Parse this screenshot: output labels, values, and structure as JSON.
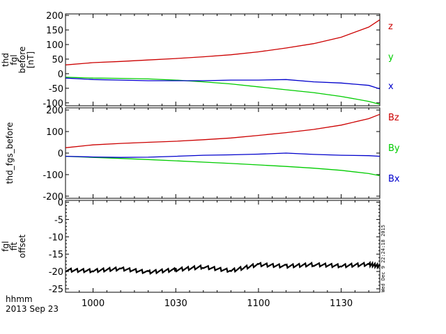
{
  "chart_data": [
    {
      "type": "line",
      "ylabel_lines": [
        "thd",
        "fgl",
        "before",
        "[nT]"
      ],
      "ylim": [
        -110,
        205
      ],
      "yticks": [
        200,
        150,
        100,
        50,
        0,
        -50,
        -100
      ],
      "x": [
        "09:50",
        "10:00",
        "10:10",
        "10:20",
        "10:30",
        "10:40",
        "10:50",
        "11:00",
        "11:10",
        "11:20",
        "11:30",
        "11:40",
        "11:44"
      ],
      "series": [
        {
          "name": "z",
          "color": "#cc0000",
          "values": [
            30,
            38,
            42,
            47,
            52,
            58,
            65,
            75,
            88,
            103,
            125,
            160,
            185
          ]
        },
        {
          "name": "y",
          "color": "#00cc00",
          "values": [
            -12,
            -15,
            -16,
            -18,
            -22,
            -28,
            -35,
            -45,
            -55,
            -65,
            -78,
            -95,
            -105
          ]
        },
        {
          "name": "x",
          "color": "#0000cc",
          "values": [
            -15,
            -20,
            -22,
            -24,
            -24,
            -24,
            -22,
            -22,
            -20,
            -28,
            -32,
            -40,
            -52
          ]
        }
      ]
    },
    {
      "type": "line",
      "ylabel": "thd_fgs_before",
      "ylim": [
        -210,
        210
      ],
      "yticks": [
        200,
        100,
        0,
        -100,
        -200
      ],
      "x": [
        "09:50",
        "10:00",
        "10:10",
        "10:20",
        "10:30",
        "10:40",
        "10:50",
        "11:00",
        "11:10",
        "11:20",
        "11:30",
        "11:40",
        "11:44"
      ],
      "series": [
        {
          "name": "Bz",
          "color": "#cc0000",
          "values": [
            25,
            38,
            45,
            50,
            55,
            62,
            70,
            82,
            95,
            110,
            130,
            160,
            180
          ]
        },
        {
          "name": "By",
          "color": "#00cc00",
          "values": [
            -15,
            -20,
            -25,
            -30,
            -36,
            -42,
            -48,
            -55,
            -62,
            -70,
            -80,
            -95,
            -105
          ]
        },
        {
          "name": "Bx",
          "color": "#0000cc",
          "values": [
            -15,
            -18,
            -20,
            -19,
            -15,
            -10,
            -8,
            -5,
            0,
            -6,
            -10,
            -12,
            -15
          ]
        }
      ]
    },
    {
      "type": "line",
      "ylabel_lines": [
        "fgl",
        "fit",
        "offset"
      ],
      "ylim": [
        -26,
        0.5
      ],
      "yticks": [
        0,
        -5,
        -10,
        -15,
        -20,
        -25
      ],
      "x": [
        "09:50",
        "10:00",
        "10:10",
        "10:20",
        "10:30",
        "10:40",
        "10:50",
        "11:00",
        "11:10",
        "11:20",
        "11:30",
        "11:40",
        "11:44"
      ],
      "series": [
        {
          "name": "",
          "color": "#000000",
          "values": [
            -19.6,
            -19.8,
            -19.2,
            -20.2,
            -19.5,
            -18.7,
            -19.8,
            -18.0,
            -18.5,
            -18.0,
            -18.4,
            -17.9,
            -18.5
          ]
        }
      ]
    }
  ],
  "xaxis": {
    "tick_labels": [
      "1000",
      "1030",
      "1100",
      "1130"
    ],
    "label_line1": "hhmm",
    "label_line2": "2013 Sep 23"
  },
  "timestamp": "Wed Dec  9 22:24:18 2015"
}
